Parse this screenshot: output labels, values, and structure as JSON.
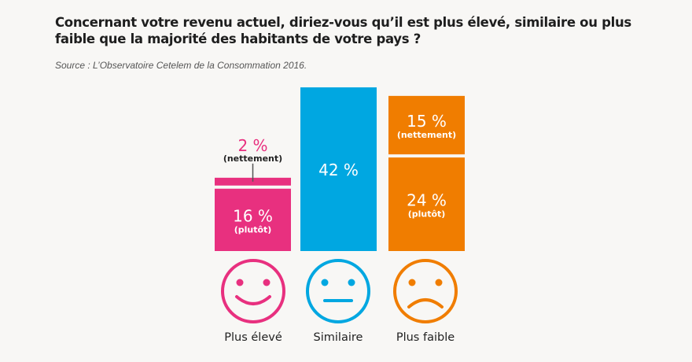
{
  "header": {
    "title": "Concernant votre revenu actuel, diriez-vous qu’il est plus élevé, similaire ou plus faible que la majorité des habitants de votre pays ?",
    "source": "Source : L’Observatoire Cetelem de la Consommation 2016."
  },
  "chart_data": {
    "type": "bar",
    "stacked": true,
    "title": "Concernant votre revenu actuel, diriez-vous qu’il est plus élevé, similaire ou plus faible que la majorité des habitants de votre pays ?",
    "source": "Source : L’Observatoire Cetelem de la Consommation 2016.",
    "unit": "%",
    "categories": [
      "Plus élevé",
      "Similaire",
      "Plus faible"
    ],
    "colors": [
      "#e8307f",
      "#00a7e1",
      "#f07d00"
    ],
    "faces": [
      "smile-icon",
      "neutral-face-icon",
      "sad-face-icon"
    ],
    "bars": [
      {
        "category": "Plus élevé",
        "segments": [
          {
            "label": "(plutôt)",
            "value": 16,
            "text": "16 %"
          },
          {
            "label": "(nettement)",
            "value": 2,
            "text": "2 %"
          }
        ]
      },
      {
        "category": "Similaire",
        "segments": [
          {
            "label": "",
            "value": 42,
            "text": "42 %"
          }
        ]
      },
      {
        "category": "Plus faible",
        "segments": [
          {
            "label": "(plutôt)",
            "value": 24,
            "text": "24 %"
          },
          {
            "label": "(nettement)",
            "value": 15,
            "text": "15 %"
          }
        ]
      }
    ],
    "ylim": [
      0,
      42
    ]
  }
}
